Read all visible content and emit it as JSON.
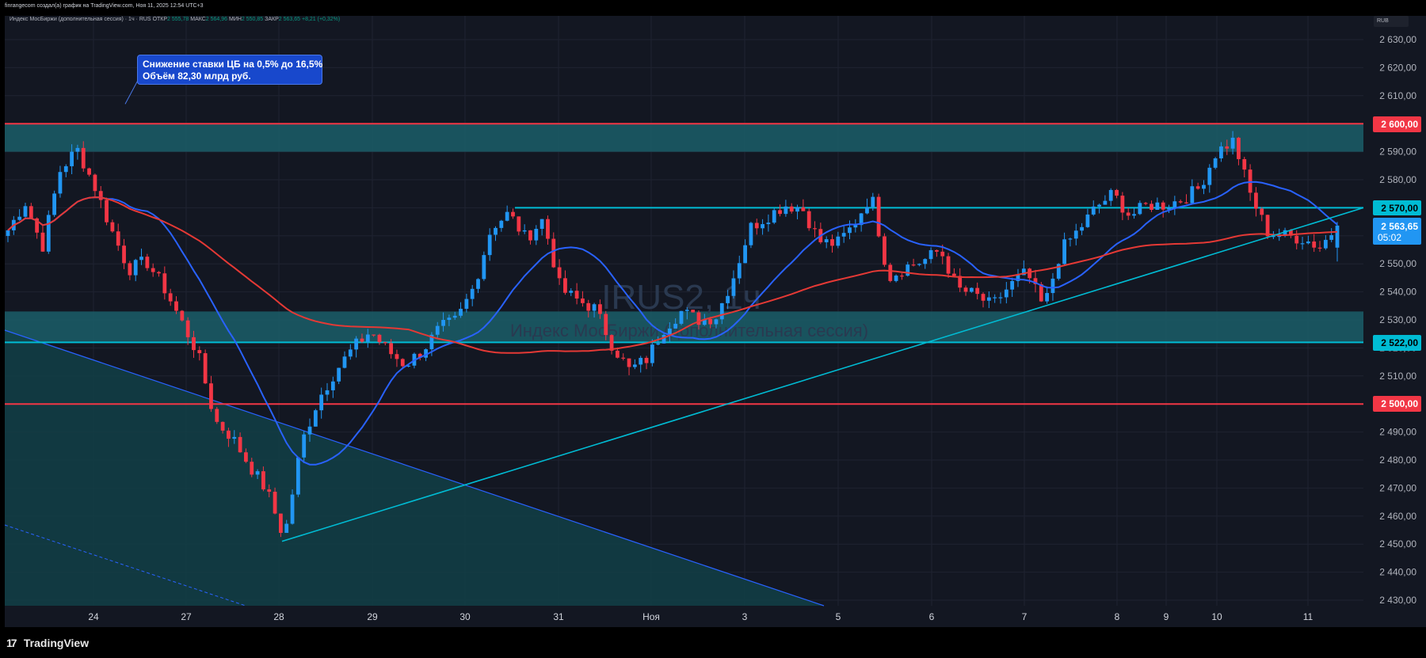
{
  "header": {
    "caption": "finrangecom создал(а) график на TradingView.com, Ноя 11, 2025 12:54 UTC+3"
  },
  "legend": {
    "symbol_name": "Индекс МосБиржи (дополнительная сессия) · 1ч · RUS",
    "open_label": "ОТКР",
    "open_value": "2 555,78",
    "high_label": "МАКС",
    "high_value": "2 564,96",
    "low_label": "МИН",
    "low_value": "2 550,85",
    "close_label": "ЗАКР",
    "close_value": "2 563,65",
    "change_value": "+8,21 (+0,32%)"
  },
  "currency_label": "RUB",
  "watermark": {
    "ticker": "IRUS2, 1ч",
    "name": "Индекс МосБиржи (дополнительная сессия)"
  },
  "callout": {
    "line1": "Снижение ставки ЦБ на 0,5% до 16,5%",
    "line2": "Объём 82,30 млрд руб."
  },
  "price_badges": {
    "r2600": "2 600,00",
    "r2570": "2 570,00",
    "current_price": "2 563,65",
    "countdown": "05:02",
    "r2522": "2 522,00",
    "r2500": "2 500,00"
  },
  "footer": {
    "brand": "TradingView",
    "brand_mark": "17"
  },
  "colors": {
    "background": "#131722",
    "up": "#2196f3",
    "down": "#f23645",
    "zone": "#1b5e68",
    "cyan": "#00bcd4",
    "red_level": "#f23645",
    "ma_fast": "#2962ff",
    "ma_slow": "#e53935"
  },
  "chart_data": {
    "type": "candlestick",
    "y_axis": {
      "min": 2430,
      "max": 2630,
      "step": 10,
      "tick_labels": [
        "2 630,00",
        "2 620,00",
        "2 610,00",
        "2 600,00",
        "2 590,00",
        "2 580,00",
        "2 570,00",
        "2 560,00",
        "2 550,00",
        "2 540,00",
        "2 530,00",
        "2 520,00",
        "2 510,00",
        "2 500,00",
        "2 490,00",
        "2 480,00",
        "2 470,00",
        "2 460,00",
        "2 450,00",
        "2 440,00",
        "2 430,00"
      ]
    },
    "x_axis": {
      "tick_labels": [
        "24",
        "27",
        "28",
        "29",
        "30",
        "31",
        "Ноя",
        "3",
        "5",
        "6",
        "7",
        "8",
        "9",
        "10",
        "11"
      ]
    },
    "horizontal_levels": [
      2600,
      2570,
      2522,
      2500
    ],
    "zones": [
      {
        "from": 2590,
        "to": 2600
      },
      {
        "from": 2522,
        "to": 2533
      }
    ],
    "close_path": [
      2562,
      2572,
      2556,
      2583,
      2591,
      2578,
      2562,
      2548,
      2551,
      2542,
      2530,
      2518,
      2494,
      2488,
      2478,
      2469,
      2452,
      2486,
      2502,
      2512,
      2520,
      2526,
      2519,
      2514,
      2519,
      2527,
      2530,
      2542,
      2563,
      2568,
      2559,
      2566,
      2541,
      2537,
      2534,
      2521,
      2512,
      2516,
      2527,
      2533,
      2530,
      2531,
      2545,
      2563,
      2567,
      2571,
      2570,
      2558,
      2557,
      2564,
      2575,
      2545,
      2549,
      2551,
      2555,
      2541,
      2539,
      2535,
      2542,
      2547,
      2534,
      2555,
      2562,
      2570,
      2575,
      2567,
      2571,
      2571,
      2573,
      2577,
      2590,
      2594,
      2574,
      2561,
      2560,
      2559,
      2556,
      2563.65
    ],
    "last": {
      "open": 2555.78,
      "high": 2564.96,
      "low": 2550.85,
      "close": 2563.65,
      "change": 8.21,
      "change_pct": 0.32
    }
  }
}
